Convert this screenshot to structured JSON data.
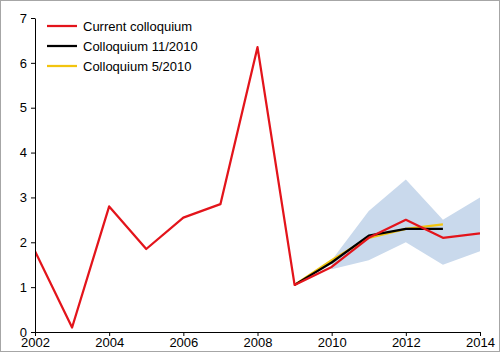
{
  "chart_data": {
    "type": "line",
    "x": [
      2002,
      2003,
      2004,
      2005,
      2006,
      2007,
      2008,
      2009,
      2010,
      2011,
      2012,
      2013,
      2014
    ],
    "series": [
      {
        "name": "Current colloquium",
        "color": "#e3141b",
        "values": [
          1.8,
          0.1,
          2.8,
          1.85,
          2.55,
          2.85,
          6.35,
          1.05,
          1.45,
          2.1,
          2.5,
          2.1,
          2.2
        ]
      },
      {
        "name": "Colloquium 11/2010",
        "color": "#000000",
        "values": [
          null,
          null,
          null,
          null,
          null,
          null,
          null,
          1.05,
          1.55,
          2.15,
          2.3,
          2.3,
          null
        ]
      },
      {
        "name": "Colloquium 5/2010",
        "color": "#f2c40f",
        "values": [
          null,
          null,
          null,
          null,
          null,
          null,
          null,
          1.05,
          1.6,
          2.1,
          2.3,
          2.4,
          null
        ]
      }
    ],
    "band": {
      "color": "#c9d9ec",
      "lower": [
        null,
        null,
        null,
        null,
        null,
        null,
        null,
        null,
        1.4,
        1.6,
        2.0,
        1.5,
        1.8
      ],
      "upper": [
        null,
        null,
        null,
        null,
        null,
        null,
        null,
        null,
        1.6,
        2.7,
        3.4,
        2.5,
        3.0
      ]
    },
    "xlim": [
      2002,
      2014
    ],
    "xticks": [
      2002,
      2004,
      2006,
      2008,
      2010,
      2012,
      2014
    ],
    "ylim": [
      0,
      7
    ],
    "yticks": [
      0,
      1,
      2,
      3,
      4,
      5,
      6,
      7
    ],
    "legend": "upper left",
    "grid": false
  }
}
